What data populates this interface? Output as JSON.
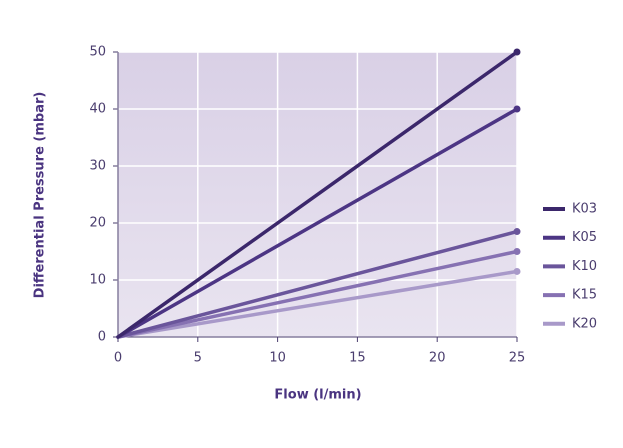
{
  "chart_data": {
    "type": "line",
    "x_label": "Flow (l/min)",
    "y_label": "Differential Pressure (mbar)",
    "x": [
      0,
      25
    ],
    "series": [
      {
        "name": "K03",
        "color": "#3b276b",
        "values": [
          0,
          50
        ]
      },
      {
        "name": "K05",
        "color": "#4c3584",
        "values": [
          0,
          40
        ]
      },
      {
        "name": "K10",
        "color": "#6a559b",
        "values": [
          0,
          18.5
        ]
      },
      {
        "name": "K15",
        "color": "#8671b2",
        "values": [
          0,
          15
        ]
      },
      {
        "name": "K20",
        "color": "#a899c9",
        "values": [
          0,
          11.5
        ]
      }
    ],
    "xlim": [
      0,
      25
    ],
    "xticks": [
      0,
      5,
      10,
      15,
      20,
      25
    ],
    "ylim": [
      0,
      50
    ],
    "yticks": [
      0,
      10,
      20,
      30,
      40,
      50
    ],
    "grid": true,
    "legend": "right"
  }
}
